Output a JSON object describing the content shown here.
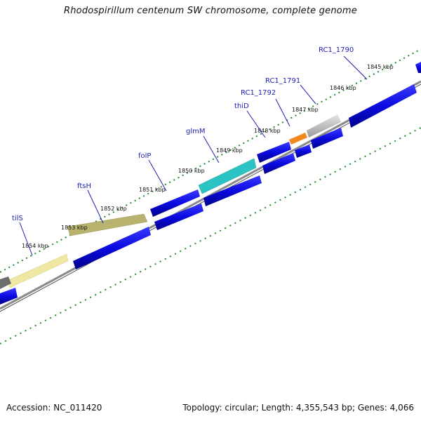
{
  "title": "Rhodospirillum centenum SW chromosome, complete genome",
  "footer": {
    "accession": "Accession: NC_011420",
    "topology": "Topology: circular; Length: 4,355,543 bp; Genes: 4,066"
  },
  "kbp_labels": [
    "1845 kbp",
    "1846 kbp",
    "1847 kbp",
    "1848 kbp",
    "1849 kbp",
    "1850 kbp",
    "1851 kbp",
    "1852 kbp",
    "1853 kbp",
    "1854 kbp"
  ],
  "gene_labels": [
    "RC1_1790",
    "RC1_1791",
    "RC1_1792",
    "thiD",
    "glmM",
    "folP",
    "ftsH",
    "tilS"
  ],
  "colors": {
    "gene_blue": "#0a0ae0",
    "tick_green": "#2a8a2a",
    "backbone": "#8a8a8a",
    "tilS": "#efe7a4",
    "ftsH": "#b8b470",
    "glmM": "#2ac4c4",
    "RC1_1791": "#f08a1e",
    "RC1_1790": "#c4c4c4",
    "label_blue": "#1f1fb4"
  }
}
